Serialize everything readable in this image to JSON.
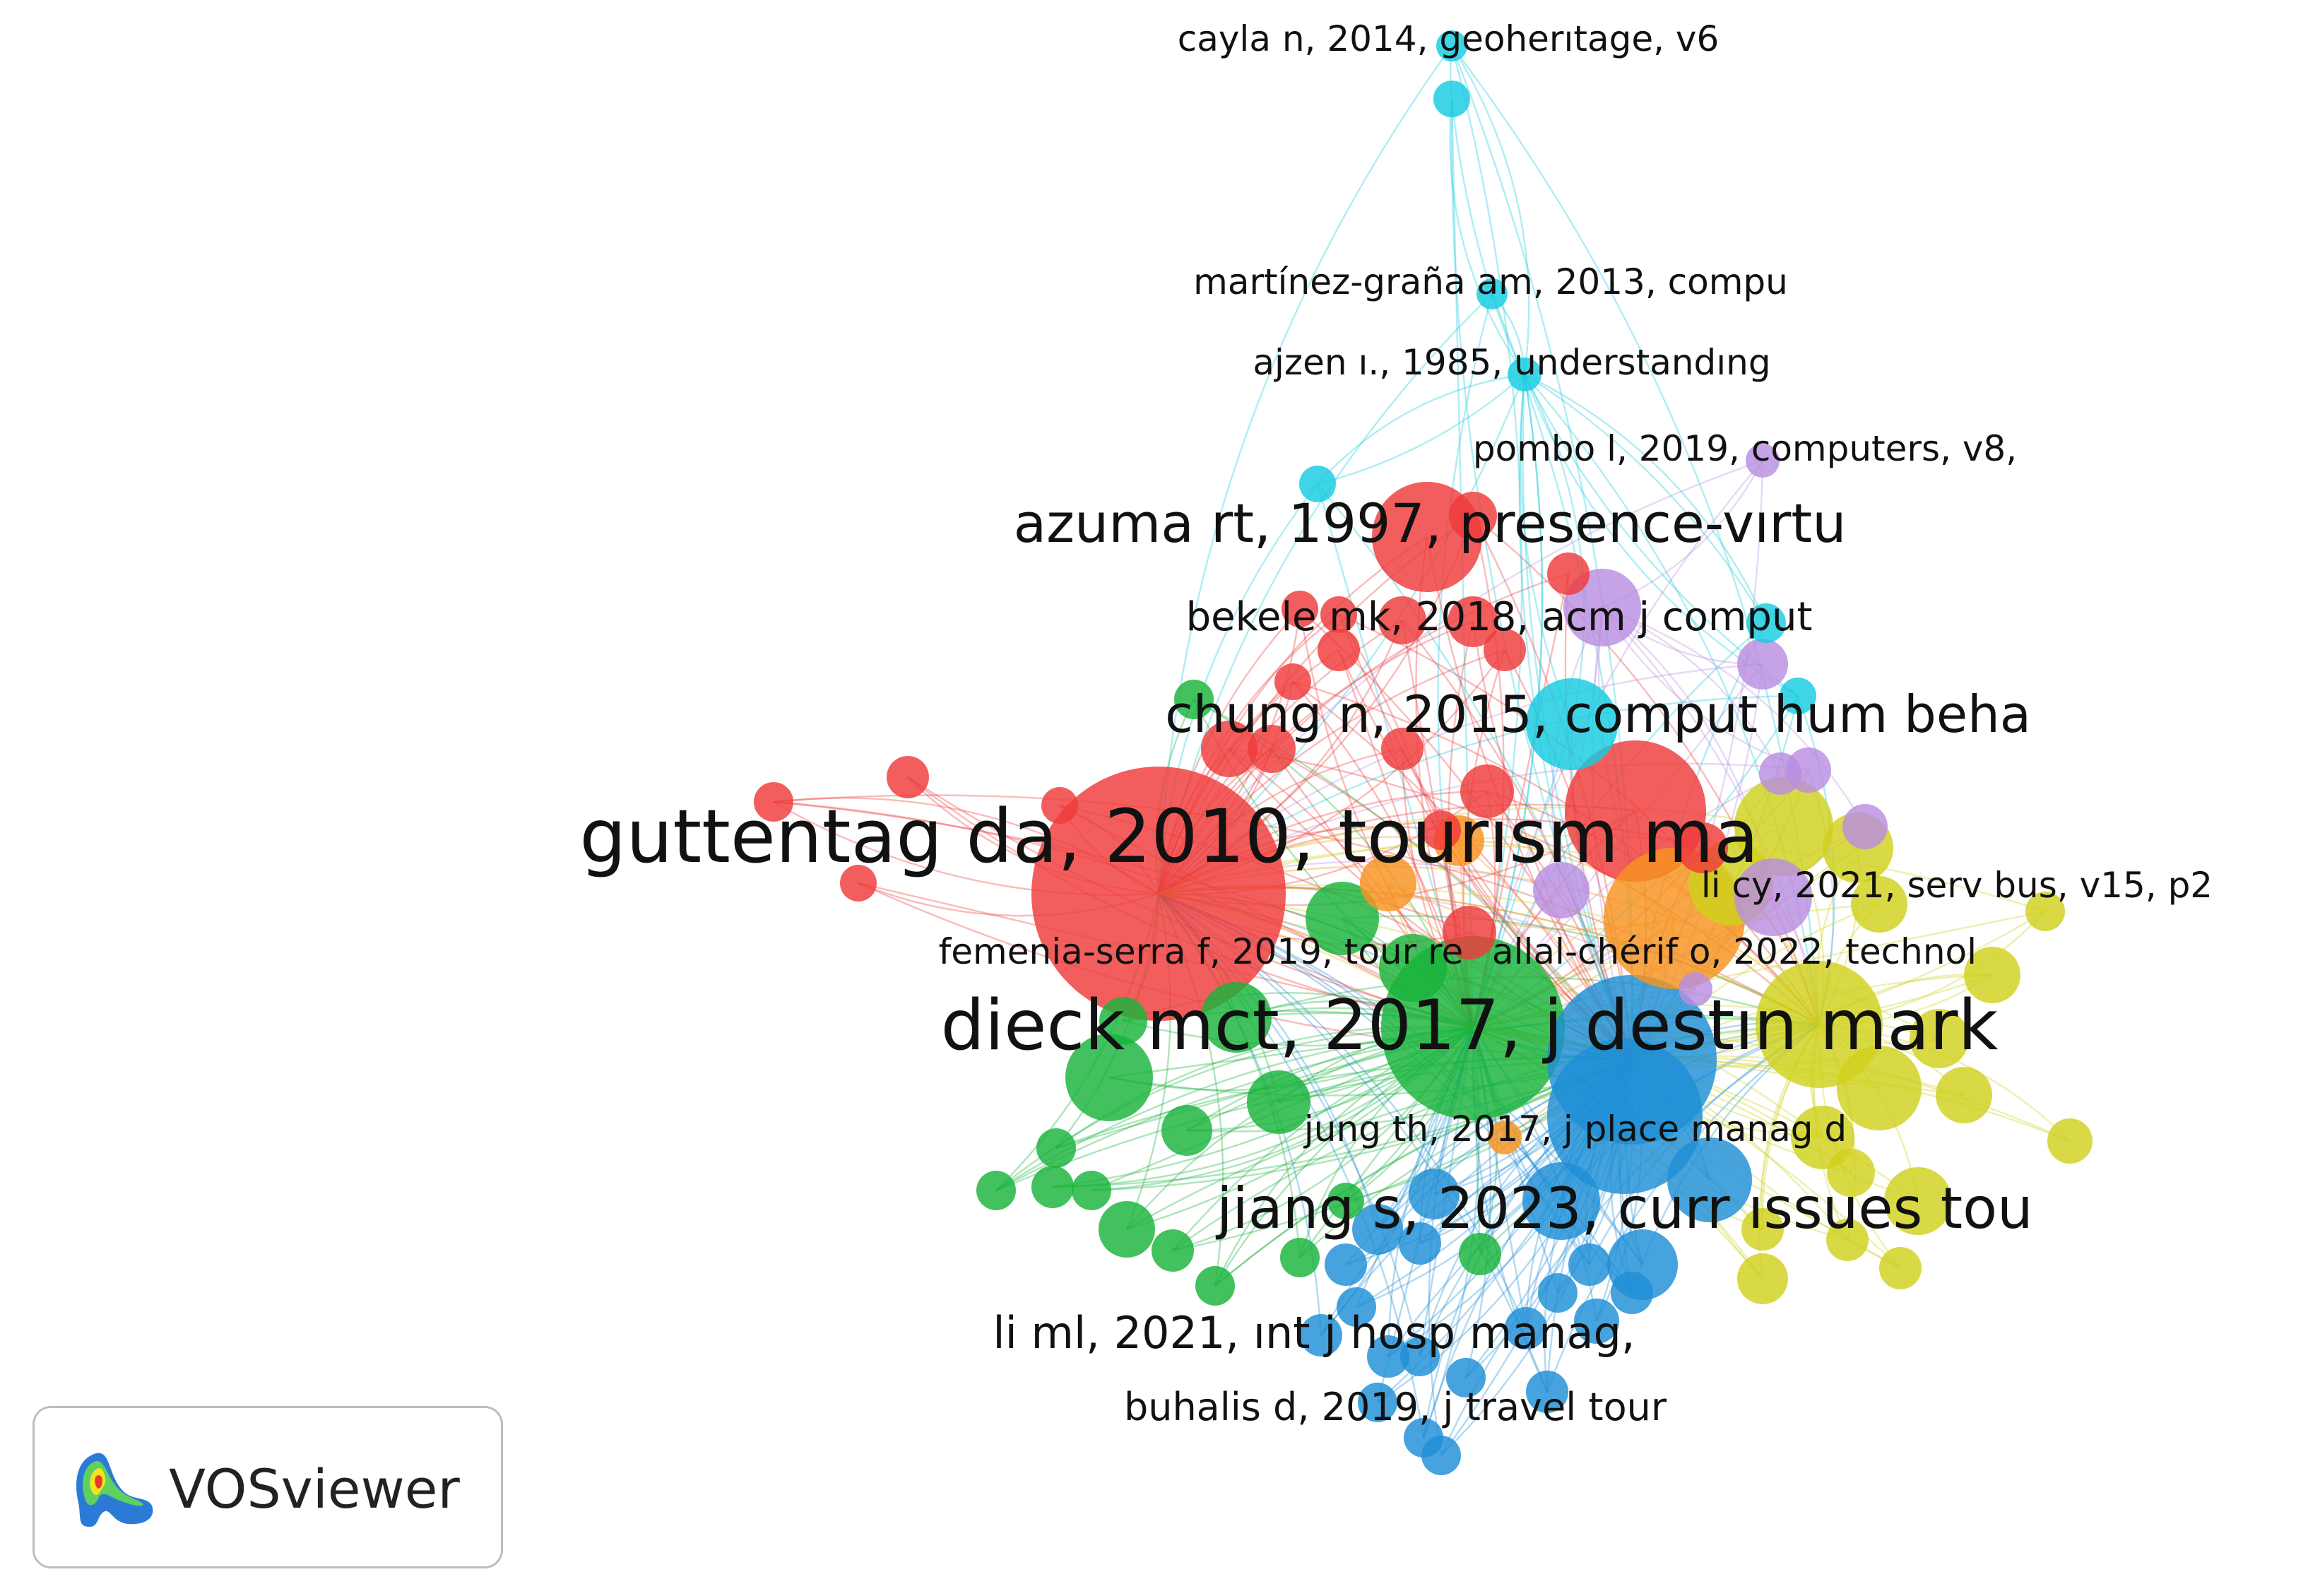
{
  "app": {
    "brand_label": "VOSviewer"
  },
  "colors": {
    "red": "#ef3b3b",
    "green": "#18b33a",
    "blue": "#1f8fd6",
    "yellow": "#cfd11c",
    "purple": "#b98ee0",
    "cyan": "#16cce0",
    "orange": "#f7931e"
  },
  "labels": [
    {
      "id": "cayla",
      "text": "cayla n, 2014, geoherıtage, v6",
      "cluster": "cyan"
    },
    {
      "id": "martinez",
      "text": "martínez-graña am, 2013, compu",
      "cluster": "cyan"
    },
    {
      "id": "ajzen",
      "text": "ajzen ı., 1985, understandıng",
      "cluster": "cyan"
    },
    {
      "id": "pombo",
      "text": "pombo l, 2019, computers, v8,",
      "cluster": "purple"
    },
    {
      "id": "azuma",
      "text": "azuma rt, 1997, presence-vırtu",
      "cluster": "red"
    },
    {
      "id": "bekele",
      "text": "bekele mk, 2018, acm j comput",
      "cluster": "red"
    },
    {
      "id": "chung",
      "text": "chung n, 2015, comput hum beha",
      "cluster": "red"
    },
    {
      "id": "guttentag",
      "text": "guttentag da, 2010, tourısm ma",
      "cluster": "red"
    },
    {
      "id": "licy",
      "text": "li cy, 2021, serv bus, v15, p2",
      "cluster": "purple"
    },
    {
      "id": "femenia",
      "text": "femenia-serra f, 2019, tour re",
      "cluster": "green"
    },
    {
      "id": "allal",
      "text": "allal-chérif o, 2022, technol",
      "cluster": "orange"
    },
    {
      "id": "dieck",
      "text": "dieck mct, 2017, j destın mark",
      "cluster": "green"
    },
    {
      "id": "jungth",
      "text": "jung th, 2017, j place manag d",
      "cluster": "orange"
    },
    {
      "id": "jiang",
      "text": "jiang s, 2023, curr ıssues tou",
      "cluster": "blue"
    },
    {
      "id": "liml",
      "text": "li ml, 2021, ınt j hosp manag,",
      "cluster": "blue"
    },
    {
      "id": "buhalis",
      "text": "buhalis d, 2019, j travel tour",
      "cluster": "blue"
    }
  ]
}
